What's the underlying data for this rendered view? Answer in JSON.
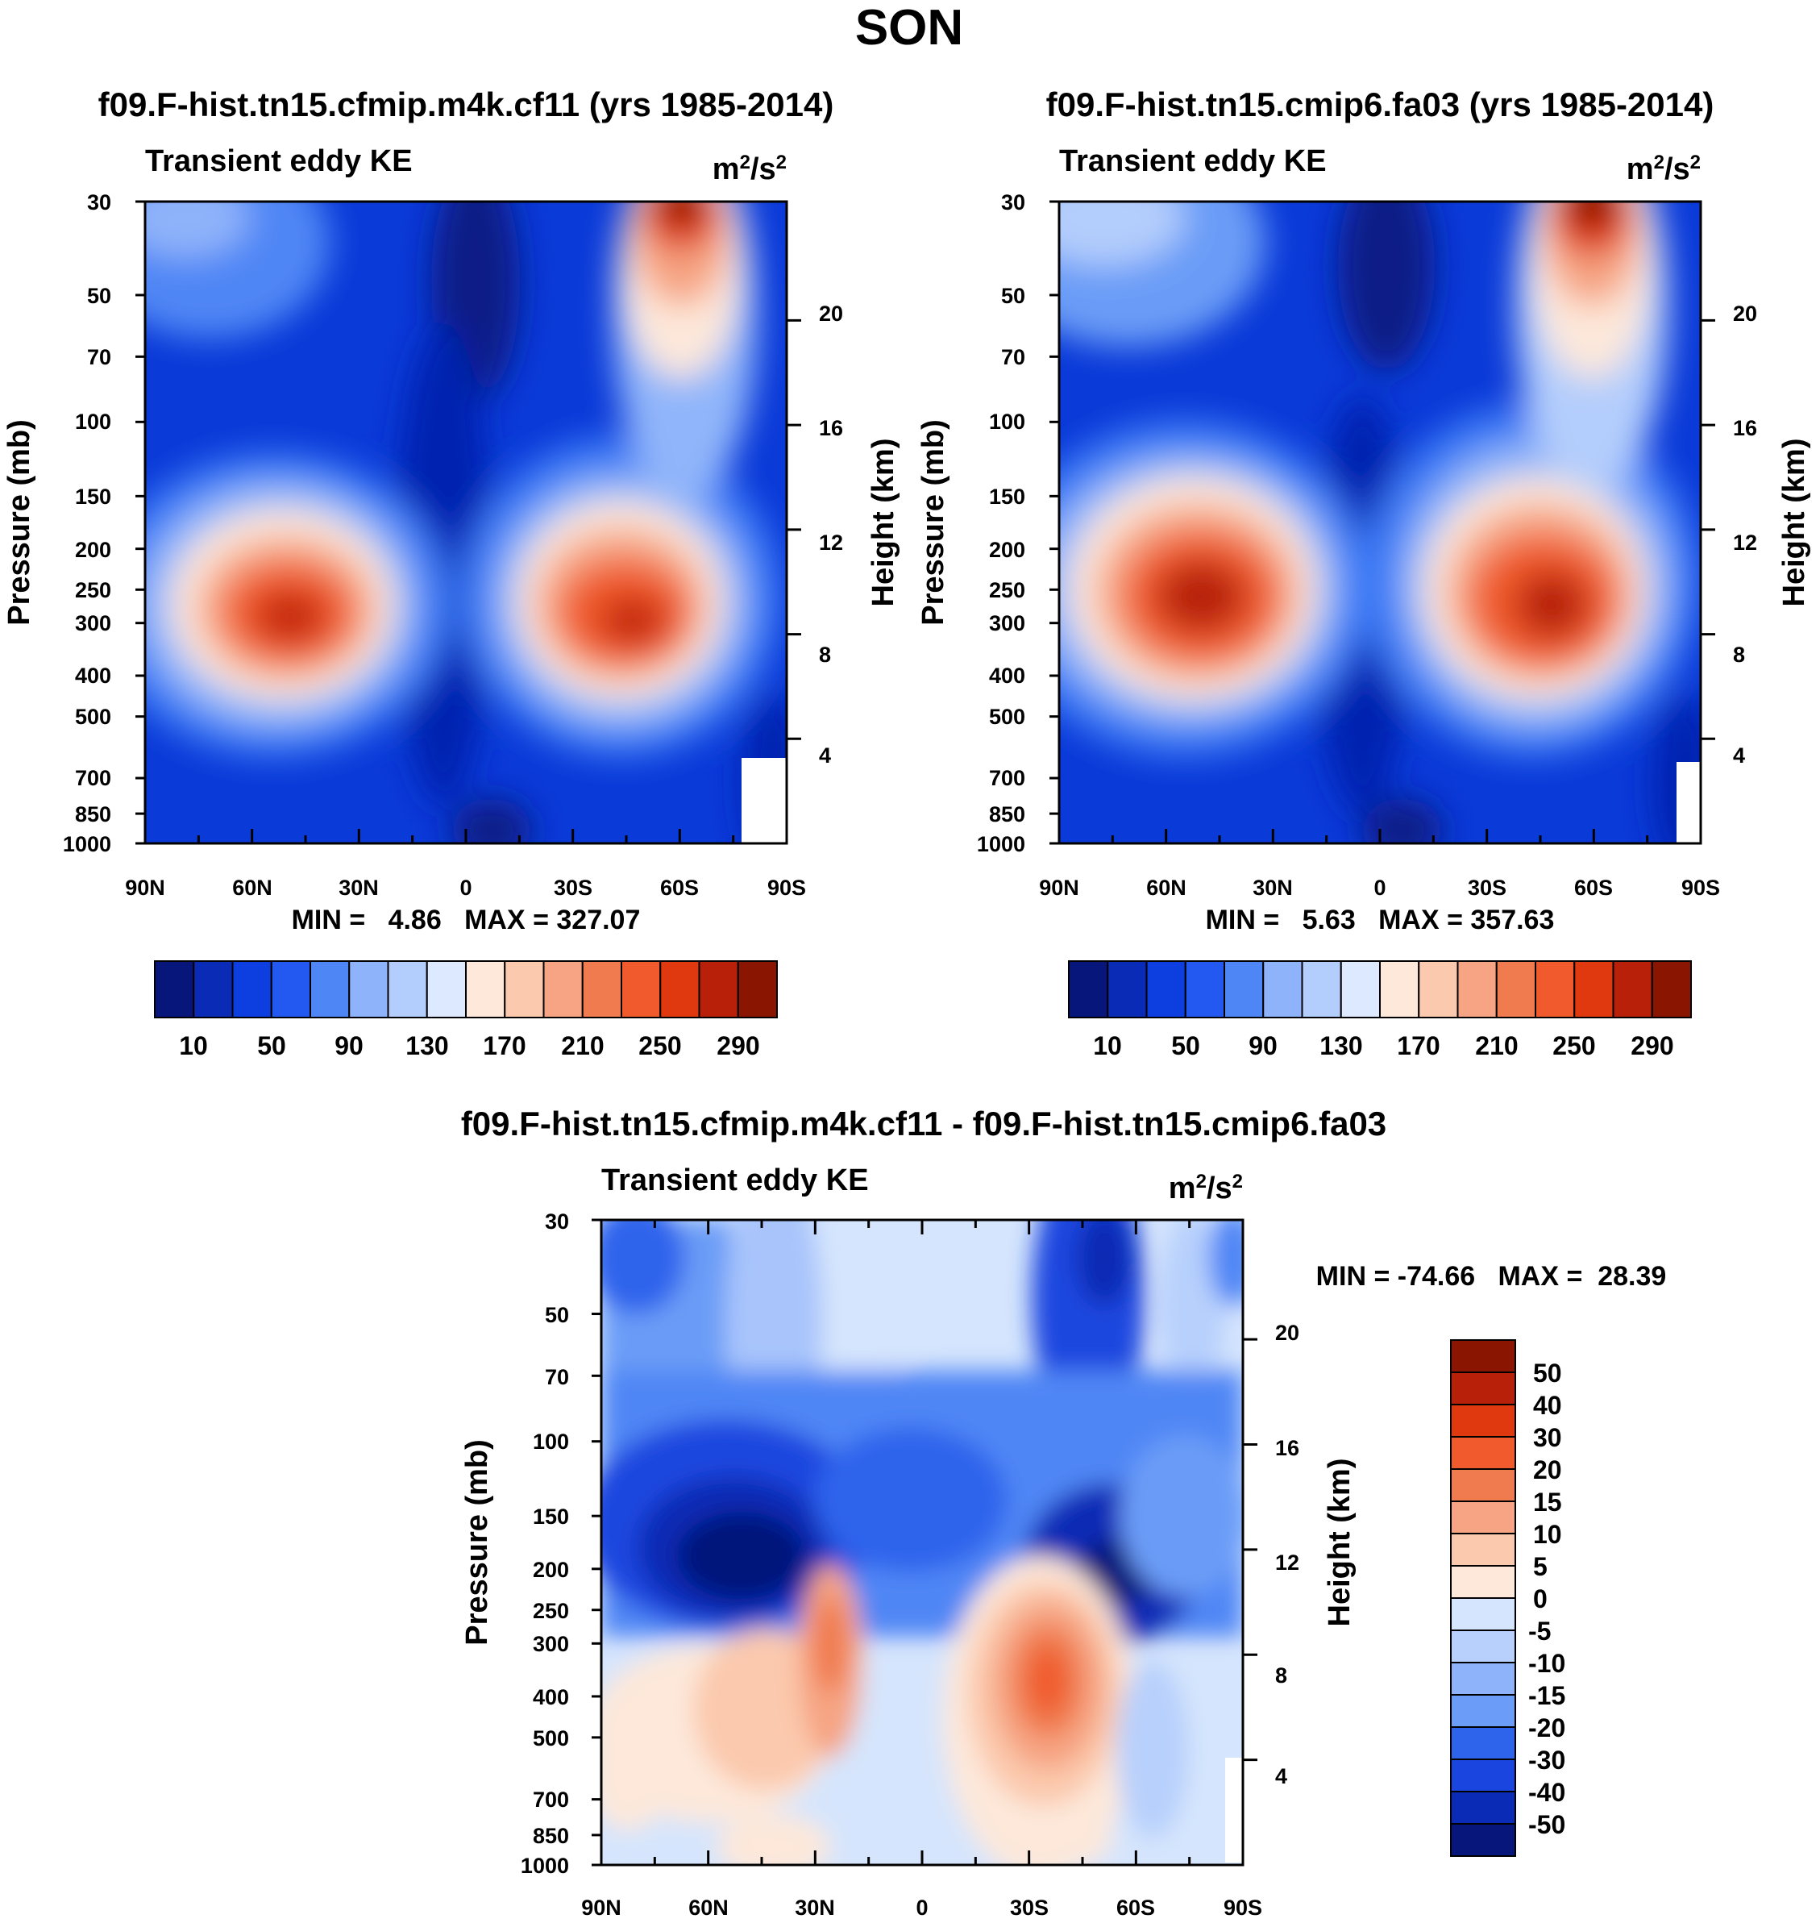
{
  "page": {
    "title": "SON"
  },
  "chart_data": [
    {
      "type": "heatmap",
      "title": "f09.F-hist.tn15.cfmip.m4k.cf11 (yrs 1985-2014)",
      "subtitle_left": "Transient eddy KE",
      "units": {
        "base": "m",
        "exp1": "2",
        "mid": "/s",
        "exp2": "2"
      },
      "ylabel": "Pressure (mb)",
      "y2label": "Height (km)",
      "x_ticks": [
        "90N",
        "60N",
        "30N",
        "0",
        "30S",
        "60S",
        "90S"
      ],
      "y_ticks": [
        "30",
        "50",
        "70",
        "100",
        "150",
        "200",
        "250",
        "300",
        "400",
        "500",
        "700",
        "850",
        "1000"
      ],
      "y2_ticks": [
        "20",
        "16",
        "12",
        "8",
        "4"
      ],
      "min_max": "MIN =   4.86   MAX = 327.07",
      "min": 4.86,
      "max": 327.07,
      "colorbar_labels": [
        "10",
        "50",
        "90",
        "130",
        "170",
        "210",
        "250",
        "290"
      ],
      "features": [
        {
          "lat": 48,
          "p": 300,
          "value": 300
        },
        {
          "lat": -45,
          "p": 300,
          "value": 300
        },
        {
          "lat": -60,
          "p": 30,
          "value": 320
        }
      ]
    },
    {
      "type": "heatmap",
      "title": "f09.F-hist.tn15.cmip6.fa03 (yrs 1985-2014)",
      "subtitle_left": "Transient eddy KE",
      "units": {
        "base": "m",
        "exp1": "2",
        "mid": "/s",
        "exp2": "2"
      },
      "ylabel": "Pressure (mb)",
      "y2label": "Height (km)",
      "x_ticks": [
        "90N",
        "60N",
        "30N",
        "0",
        "30S",
        "60S",
        "90S"
      ],
      "y_ticks": [
        "30",
        "50",
        "70",
        "100",
        "150",
        "200",
        "250",
        "300",
        "400",
        "500",
        "700",
        "850",
        "1000"
      ],
      "y2_ticks": [
        "20",
        "16",
        "12",
        "8",
        "4"
      ],
      "min_max": "MIN =   5.63   MAX = 357.63",
      "min": 5.63,
      "max": 357.63,
      "colorbar_labels": [
        "10",
        "50",
        "90",
        "130",
        "170",
        "210",
        "250",
        "290"
      ],
      "features": [
        {
          "lat": 50,
          "p": 260,
          "value": 320
        },
        {
          "lat": -50,
          "p": 280,
          "value": 310
        },
        {
          "lat": -60,
          "p": 30,
          "value": 350
        }
      ]
    },
    {
      "type": "heatmap",
      "title": "f09.F-hist.tn15.cfmip.m4k.cf11 - f09.F-hist.tn15.cmip6.fa03",
      "subtitle_left": "Transient eddy KE",
      "units": {
        "base": "m",
        "exp1": "2",
        "mid": "/s",
        "exp2": "2"
      },
      "ylabel": "Pressure (mb)",
      "y2label": "Height (km)",
      "x_ticks": [
        "90N",
        "60N",
        "30N",
        "0",
        "30S",
        "60S",
        "90S"
      ],
      "y_ticks": [
        "30",
        "50",
        "70",
        "100",
        "150",
        "200",
        "250",
        "300",
        "400",
        "500",
        "700",
        "850",
        "1000"
      ],
      "y2_ticks": [
        "20",
        "16",
        "12",
        "8",
        "4"
      ],
      "min_max": "MIN = -74.66   MAX =  28.39",
      "min": -74.66,
      "max": 28.39,
      "colorbar_labels": [
        "50",
        "40",
        "30",
        "20",
        "15",
        "10",
        "5",
        "0",
        "-5",
        "-10",
        "-15",
        "-20",
        "-30",
        "-40",
        "-50"
      ],
      "features": [
        {
          "lat": 45,
          "p": 190,
          "value": -60
        },
        {
          "lat": -55,
          "p": 210,
          "value": -55
        },
        {
          "lat": 26,
          "p": 320,
          "value": 18
        },
        {
          "lat": -34,
          "p": 400,
          "value": 22
        }
      ]
    }
  ]
}
